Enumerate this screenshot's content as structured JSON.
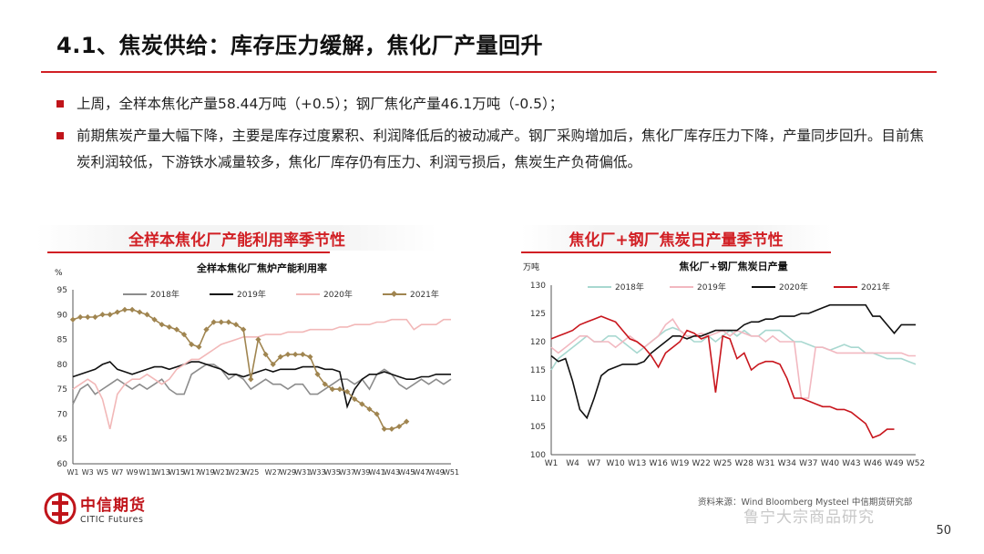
{
  "slide": {
    "title": "4.1、焦炭供给：库存压力缓解，焦化厂产量回升",
    "accent_color": "#d11f24",
    "bullets": [
      "上周，全样本焦化产量58.44万吨（+0.5）；钢厂焦化产量46.1万吨（-0.5）；",
      "前期焦炭产量大幅下降，主要是库存过度累积、利润降低后的被动减产。钢厂采购增加后，焦化厂库存压力下降，产量同步回升。目前焦炭利润较低，下游铁水减量较多，焦化厂库存仍有压力、利润亏损后，焦炭生产负荷偏低。"
    ],
    "page_number": "50"
  },
  "footer": {
    "logo_cn": "中信期货",
    "logo_en": "CITIC Futures",
    "source": "资料来源：Wind Bloomberg Mysteel 中信期货研究部",
    "watermark": "鲁宁大宗商品研究"
  },
  "chart_data": [
    {
      "type": "line",
      "panel_title": "全样本焦化厂产能利用率季节性",
      "title": "全样本焦化厂焦炉产能利用率",
      "ylabel": "%",
      "xlabel": "",
      "ylim": [
        60,
        95
      ],
      "yticks": [
        60,
        65,
        70,
        75,
        80,
        85,
        90,
        95
      ],
      "xticks": [
        "W1",
        "W3",
        "W5",
        "W7",
        "W9",
        "W11",
        "W13",
        "W15",
        "W17",
        "W19",
        "W21",
        "W23",
        "W25",
        "W27",
        "W29",
        "W31",
        "W33",
        "W35",
        "W37",
        "W39",
        "W41",
        "W43",
        "W45",
        "W47",
        "W49",
        "W51"
      ],
      "legend": [
        "2018年",
        "2019年",
        "2020年",
        "2021年"
      ],
      "legend_position": "top",
      "grid": false,
      "series": [
        {
          "name": "2018年",
          "color": "#8c8c8c",
          "marker": "none",
          "values": [
            72,
            75,
            76,
            74,
            75,
            76,
            77,
            76,
            75,
            76,
            75,
            76,
            77,
            75,
            74,
            74,
            78,
            79,
            80,
            80,
            79,
            77,
            78,
            77,
            75,
            76,
            77,
            76,
            76,
            75,
            76,
            76,
            74,
            74,
            75,
            76,
            77,
            77,
            76,
            77,
            75,
            78,
            79,
            78,
            76,
            75,
            76,
            77,
            76,
            77,
            76,
            77
          ]
        },
        {
          "name": "2019年",
          "color": "#111111",
          "marker": "none",
          "values": [
            77.5,
            78,
            78.5,
            79,
            80,
            80.5,
            79,
            78.5,
            78,
            78.5,
            79,
            79.5,
            79.5,
            79,
            79.5,
            80,
            80.5,
            80.5,
            80,
            79.5,
            79,
            78,
            78,
            77.5,
            78,
            78.5,
            79,
            78.5,
            79,
            79,
            79,
            79.5,
            79.5,
            79.5,
            79,
            79,
            78.5,
            71.5,
            75,
            77,
            78,
            78,
            78.5,
            78,
            77.5,
            77,
            77,
            77.5,
            77.5,
            78,
            78,
            78
          ]
        },
        {
          "name": "2020年",
          "color": "#f2b8b8",
          "marker": "none",
          "values": [
            75,
            76,
            77,
            76,
            73,
            67,
            74,
            76,
            77,
            77,
            78,
            77,
            76,
            77,
            79,
            80,
            81,
            81,
            82,
            83,
            84,
            84.5,
            85,
            85.5,
            85.5,
            85.5,
            86,
            86,
            86,
            86.5,
            86.5,
            86.5,
            87,
            87,
            87,
            87,
            87.5,
            87.5,
            88,
            88,
            88,
            88.5,
            88.5,
            89,
            89,
            89,
            87,
            88,
            88,
            88,
            89,
            89
          ]
        },
        {
          "name": "2021年",
          "color": "#a08550",
          "marker": "diamond",
          "values": [
            89,
            89.5,
            89.5,
            89.5,
            90,
            90,
            90.5,
            91,
            91,
            90.5,
            90,
            89,
            88,
            87.5,
            87,
            86,
            84,
            83.5,
            87,
            88.5,
            88.5,
            88.5,
            88,
            87,
            77,
            85,
            82,
            80,
            81.5,
            82,
            82,
            82,
            81.5,
            78,
            76,
            75,
            75,
            74.5,
            73,
            72,
            71,
            70,
            67,
            67,
            67.5,
            68.5,
            null,
            null,
            null,
            null,
            null,
            null
          ]
        }
      ]
    },
    {
      "type": "line",
      "panel_title": "焦化厂+钢厂焦炭日产量季节性",
      "title": "焦化厂+钢厂焦炭日产量",
      "ylabel": "万吨",
      "xlabel": "",
      "ylim": [
        100,
        130
      ],
      "yticks": [
        100,
        105,
        110,
        115,
        120,
        125,
        130
      ],
      "xticks": [
        "W1",
        "W4",
        "W7",
        "W10",
        "W13",
        "W16",
        "W19",
        "W22",
        "W25",
        "W28",
        "W31",
        "W34",
        "W37",
        "W40",
        "W43",
        "W46",
        "W49",
        "W52"
      ],
      "legend": [
        "2018年",
        "2019年",
        "2020年",
        "2021年"
      ],
      "legend_position": "top",
      "grid": false,
      "series": [
        {
          "name": "2018年",
          "color": "#a8d8d0",
          "marker": "none",
          "values": [
            115,
            117,
            118,
            119,
            120,
            121,
            120,
            120,
            121,
            121,
            120,
            119,
            118,
            119,
            120,
            121,
            122,
            122.5,
            122,
            121,
            120,
            120,
            121,
            120,
            121,
            122,
            121,
            122,
            121,
            121,
            122,
            122,
            122,
            121,
            120,
            120,
            119.5,
            119,
            119,
            118.5,
            119,
            119.5,
            119,
            119,
            118,
            118,
            117.5,
            117,
            117,
            117,
            116.5,
            116
          ]
        },
        {
          "name": "2019年",
          "color": "#f2b8c0",
          "marker": "none",
          "values": [
            119,
            118,
            119,
            120,
            121,
            121,
            120,
            120,
            120,
            119,
            120,
            121,
            120,
            119,
            120,
            121,
            123,
            124,
            122,
            121,
            121,
            121.5,
            121,
            121.5,
            122,
            121,
            122,
            121.5,
            121,
            121,
            120,
            121,
            120,
            120,
            120,
            110,
            110,
            119,
            119,
            118.5,
            118,
            118,
            118,
            118,
            118,
            118,
            118,
            118,
            118,
            118,
            117.5,
            117.5
          ]
        },
        {
          "name": "2020年",
          "color": "#111111",
          "marker": "none",
          "values": [
            117.5,
            116.5,
            117,
            113,
            108,
            106.5,
            110,
            114,
            115,
            115.5,
            116,
            116,
            116,
            116.5,
            118,
            119,
            120,
            121,
            121,
            120.5,
            121,
            121,
            121.5,
            122,
            122,
            122,
            122,
            123,
            123.5,
            123.5,
            124,
            124,
            124.5,
            124.5,
            124.5,
            125,
            125,
            125.5,
            126,
            126.5,
            126.5,
            126.5,
            126.5,
            126.5,
            126.5,
            124.5,
            124.5,
            123,
            121.5,
            123,
            123,
            123
          ]
        },
        {
          "name": "2021年",
          "color": "#c8161d",
          "marker": "none",
          "values": [
            120.5,
            121,
            121.5,
            122,
            123,
            123.5,
            124,
            124.5,
            124,
            123.5,
            122,
            120.5,
            120,
            119,
            117.5,
            115.5,
            118,
            119,
            120,
            122,
            121.5,
            120.5,
            121,
            111,
            121,
            120.5,
            117,
            118,
            115,
            116,
            116.5,
            116.5,
            116,
            113.5,
            110,
            110,
            109.5,
            109,
            108.5,
            108.5,
            108,
            108,
            107.5,
            106.5,
            105.5,
            103,
            103.5,
            104.5,
            104.5,
            null,
            null,
            null
          ]
        }
      ]
    }
  ]
}
